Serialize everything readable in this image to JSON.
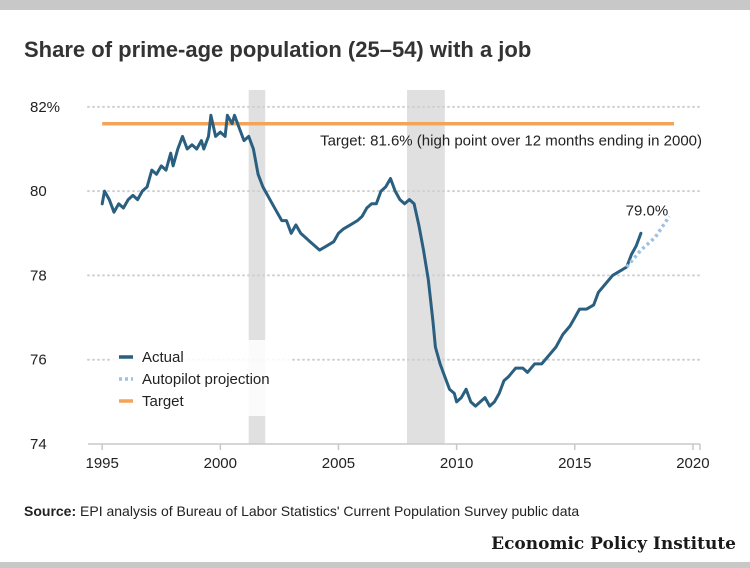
{
  "title": "Share of prime-age population (25–54) with a job",
  "source_label": "Source:",
  "source_text": "EPI analysis of Bureau of Labor Statistics' Current Population Survey public data",
  "brand": "Economic Policy Institute",
  "colors": {
    "actual": "#2a5f80",
    "projection": "#9ec3e2",
    "target": "#f4a458",
    "recession": "#e0e0e0",
    "grid": "#d0d0d0",
    "frame": "#c8c8c8"
  },
  "chart_data": {
    "type": "line",
    "xlim": [
      1994.4,
      2020.3
    ],
    "ylim": [
      74,
      82.4
    ],
    "x_ticks": [
      1995,
      2000,
      2005,
      2010,
      2015,
      2020
    ],
    "y_ticks": [
      {
        "value": 74,
        "label": "74"
      },
      {
        "value": 76,
        "label": "76"
      },
      {
        "value": 78,
        "label": "78"
      },
      {
        "value": 80,
        "label": "80"
      },
      {
        "value": 82,
        "label": "82%"
      }
    ],
    "grid": "horizontal dotted",
    "legend": "lower-left",
    "recessions": [
      {
        "start": 2001.2,
        "end": 2001.9
      },
      {
        "start": 2007.9,
        "end": 2009.5
      }
    ],
    "target": {
      "name": "Target",
      "value": 81.6,
      "x_start": 1995,
      "x_end": 2019.2,
      "annotation": "Target: 81.6% (high point over 12 months ending in 2000)"
    },
    "end_label": "79.0%",
    "series": [
      {
        "name": "Actual",
        "style": "solid",
        "points": [
          [
            1995.0,
            79.7
          ],
          [
            1995.1,
            80.0
          ],
          [
            1995.3,
            79.8
          ],
          [
            1995.5,
            79.5
          ],
          [
            1995.7,
            79.7
          ],
          [
            1995.9,
            79.6
          ],
          [
            1996.1,
            79.8
          ],
          [
            1996.3,
            79.9
          ],
          [
            1996.5,
            79.8
          ],
          [
            1996.7,
            80.0
          ],
          [
            1996.9,
            80.1
          ],
          [
            1997.1,
            80.5
          ],
          [
            1997.3,
            80.4
          ],
          [
            1997.5,
            80.6
          ],
          [
            1997.7,
            80.5
          ],
          [
            1997.9,
            80.9
          ],
          [
            1998.0,
            80.6
          ],
          [
            1998.2,
            81.0
          ],
          [
            1998.4,
            81.3
          ],
          [
            1998.6,
            81.0
          ],
          [
            1998.8,
            81.1
          ],
          [
            1999.0,
            81.0
          ],
          [
            1999.2,
            81.2
          ],
          [
            1999.3,
            81.0
          ],
          [
            1999.5,
            81.3
          ],
          [
            1999.6,
            81.8
          ],
          [
            1999.8,
            81.3
          ],
          [
            2000.0,
            81.4
          ],
          [
            2000.2,
            81.3
          ],
          [
            2000.3,
            81.8
          ],
          [
            2000.5,
            81.6
          ],
          [
            2000.6,
            81.8
          ],
          [
            2000.8,
            81.5
          ],
          [
            2001.0,
            81.2
          ],
          [
            2001.2,
            81.3
          ],
          [
            2001.4,
            81.0
          ],
          [
            2001.6,
            80.4
          ],
          [
            2001.8,
            80.1
          ],
          [
            2002.0,
            79.9
          ],
          [
            2002.2,
            79.7
          ],
          [
            2002.4,
            79.5
          ],
          [
            2002.6,
            79.3
          ],
          [
            2002.8,
            79.3
          ],
          [
            2003.0,
            79.0
          ],
          [
            2003.2,
            79.2
          ],
          [
            2003.4,
            79.0
          ],
          [
            2003.6,
            78.9
          ],
          [
            2003.8,
            78.8
          ],
          [
            2004.0,
            78.7
          ],
          [
            2004.2,
            78.6
          ],
          [
            2004.5,
            78.7
          ],
          [
            2004.8,
            78.8
          ],
          [
            2005.0,
            79.0
          ],
          [
            2005.2,
            79.1
          ],
          [
            2005.5,
            79.2
          ],
          [
            2005.8,
            79.3
          ],
          [
            2006.0,
            79.4
          ],
          [
            2006.2,
            79.6
          ],
          [
            2006.4,
            79.7
          ],
          [
            2006.6,
            79.7
          ],
          [
            2006.8,
            80.0
          ],
          [
            2007.0,
            80.1
          ],
          [
            2007.2,
            80.3
          ],
          [
            2007.4,
            80.0
          ],
          [
            2007.6,
            79.8
          ],
          [
            2007.8,
            79.7
          ],
          [
            2008.0,
            79.8
          ],
          [
            2008.2,
            79.7
          ],
          [
            2008.4,
            79.2
          ],
          [
            2008.6,
            78.6
          ],
          [
            2008.8,
            77.9
          ],
          [
            2009.0,
            76.9
          ],
          [
            2009.1,
            76.3
          ],
          [
            2009.3,
            75.9
          ],
          [
            2009.5,
            75.6
          ],
          [
            2009.7,
            75.3
          ],
          [
            2009.9,
            75.2
          ],
          [
            2010.0,
            75.0
          ],
          [
            2010.2,
            75.1
          ],
          [
            2010.4,
            75.3
          ],
          [
            2010.6,
            75.0
          ],
          [
            2010.8,
            74.9
          ],
          [
            2011.0,
            75.0
          ],
          [
            2011.2,
            75.1
          ],
          [
            2011.4,
            74.9
          ],
          [
            2011.6,
            75.0
          ],
          [
            2011.8,
            75.2
          ],
          [
            2012.0,
            75.5
          ],
          [
            2012.2,
            75.6
          ],
          [
            2012.5,
            75.8
          ],
          [
            2012.8,
            75.8
          ],
          [
            2013.0,
            75.7
          ],
          [
            2013.3,
            75.9
          ],
          [
            2013.6,
            75.9
          ],
          [
            2013.9,
            76.1
          ],
          [
            2014.2,
            76.3
          ],
          [
            2014.5,
            76.6
          ],
          [
            2014.8,
            76.8
          ],
          [
            2015.0,
            77.0
          ],
          [
            2015.2,
            77.2
          ],
          [
            2015.5,
            77.2
          ],
          [
            2015.8,
            77.3
          ],
          [
            2016.0,
            77.6
          ],
          [
            2016.3,
            77.8
          ],
          [
            2016.6,
            78.0
          ],
          [
            2016.9,
            78.1
          ],
          [
            2017.2,
            78.2
          ],
          [
            2017.4,
            78.5
          ],
          [
            2017.6,
            78.7
          ],
          [
            2017.8,
            79.0
          ]
        ]
      },
      {
        "name": "Autopilot projection",
        "style": "dotted",
        "points": [
          [
            2017.2,
            78.2
          ],
          [
            2017.8,
            78.6
          ],
          [
            2018.4,
            78.9
          ],
          [
            2019.0,
            79.4
          ]
        ]
      }
    ]
  }
}
